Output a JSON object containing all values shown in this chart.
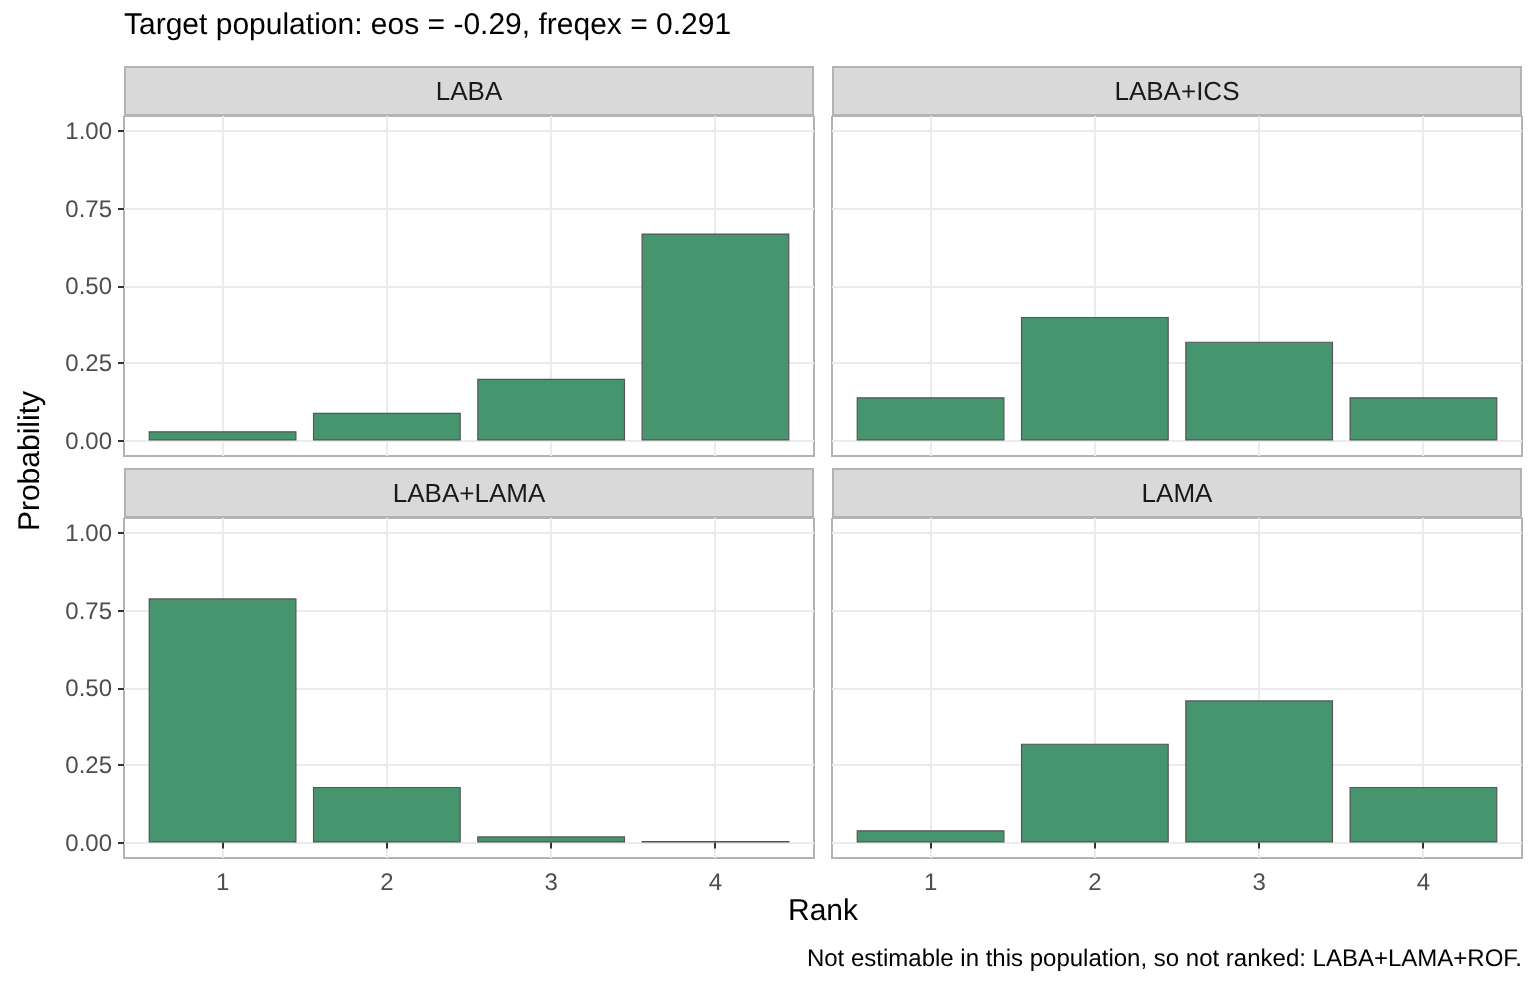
{
  "chart_data": [
    {
      "type": "bar",
      "title": "LABA",
      "annotations": [
        "Target population: eos = -0.29, freqex = 0.291"
      ],
      "ylabel": "Probability",
      "x": [
        1,
        2,
        3,
        4
      ],
      "values": [
        0.03,
        0.09,
        0.2,
        0.67
      ],
      "color": "#47956e",
      "xlim": [
        0.4,
        4.6
      ],
      "xticks": [
        1,
        2,
        3,
        4
      ],
      "ylim": [
        -0.05,
        1.05
      ],
      "yticks": [
        {
          "value": 0,
          "label": "0.00"
        },
        {
          "value": 0.25,
          "label": "0.25"
        },
        {
          "value": 0.5,
          "label": "0.50"
        },
        {
          "value": 0.75,
          "label": "0.75"
        },
        {
          "value": 1,
          "label": "1.00"
        }
      ],
      "grid": true,
      "tick_labels": "y"
    },
    {
      "type": "bar",
      "title": "LABA+ICS",
      "x": [
        1,
        2,
        3,
        4
      ],
      "values": [
        0.14,
        0.4,
        0.32,
        0.14
      ],
      "color": "#47956e",
      "xlim": [
        0.4,
        4.6
      ],
      "xticks": [
        1,
        2,
        3,
        4
      ],
      "ylim": [
        -0.05,
        1.05
      ],
      "yticks": [
        0,
        0.25,
        0.5,
        0.75,
        1
      ],
      "grid": true,
      "tick_labels": false
    },
    {
      "type": "bar",
      "title": "LABA+LAMA",
      "x": [
        1,
        2,
        3,
        4
      ],
      "values": [
        0.79,
        0.18,
        0.02,
        0.005
      ],
      "color": "#47956e",
      "xlim": [
        0.4,
        4.6
      ],
      "xticks": [
        1,
        2,
        3,
        4
      ],
      "ylim": [
        -0.05,
        1.05
      ],
      "yticks": [
        {
          "value": 0,
          "label": "0.00"
        },
        {
          "value": 0.25,
          "label": "0.25"
        },
        {
          "value": 0.5,
          "label": "0.50"
        },
        {
          "value": 0.75,
          "label": "0.75"
        },
        {
          "value": 1,
          "label": "1.00"
        }
      ],
      "grid": true
    },
    {
      "type": "bar",
      "title": "LAMA",
      "xlabel": "Rank",
      "annotations": [
        "Not estimable in this population, so not ranked: LABA+LAMA+ROF."
      ],
      "x": [
        1,
        2,
        3,
        4
      ],
      "values": [
        0.04,
        0.32,
        0.46,
        0.18
      ],
      "color": "#47956e",
      "xlim": [
        0.4,
        4.6
      ],
      "xticks": [
        1,
        2,
        3,
        4
      ],
      "ylim": [
        -0.05,
        1.05
      ],
      "yticks": [
        0,
        0.25,
        0.5,
        0.75,
        1
      ],
      "grid": true,
      "tick_labels": "x"
    }
  ]
}
